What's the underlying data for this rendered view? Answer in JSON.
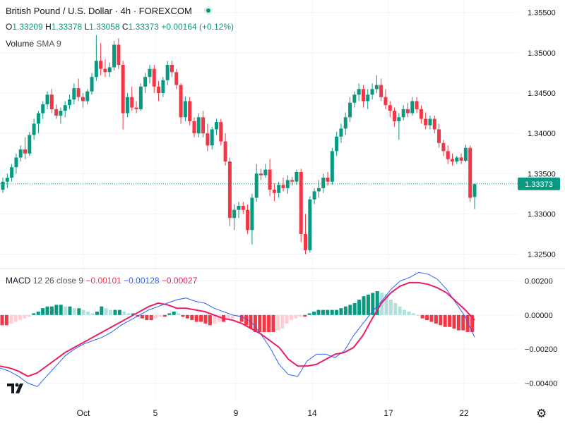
{
  "header": {
    "symbol": "British Pound / U.S. Dollar",
    "interval": "4h",
    "exchange": "FOREXCOM",
    "sep": "·",
    "status_color": "#089981"
  },
  "ohlc": {
    "o_label": "O",
    "o": "1.33209",
    "h_label": "H",
    "h": "1.33378",
    "l_label": "L",
    "l": "1.33058",
    "c_label": "C",
    "c": "1.33373",
    "change": "+0.00164 (+0.12%)"
  },
  "volume": {
    "label": "Volume",
    "ma": "SMA 9"
  },
  "macd_legend": {
    "label": "MACD",
    "params": "12 26 close 9",
    "hist": "−0.00101",
    "macd": "−0.00128",
    "signal": "−0.00027"
  },
  "colors": {
    "up": "#089981",
    "down": "#f23645",
    "up_light": "#b2dfdb",
    "down_light": "#ffcdd2",
    "macd_line": "#2962ff",
    "signal_line": "#e91e63",
    "grid": "#f0f3fa",
    "text": "#131722"
  },
  "icons": {
    "logo": "tradingview-logo-icon",
    "settings": "gear-icon"
  },
  "chart_data": [
    {
      "type": "candlestick",
      "symbol": "GBPUSD",
      "interval": "4h",
      "ylim": [
        1.324,
        1.3562
      ],
      "y_ticks": [
        "1.35500",
        "1.35000",
        "1.34500",
        "1.34000",
        "1.33500",
        "1.33000",
        "1.32500"
      ],
      "x_ticks": [
        "Oct",
        "5",
        "9",
        "14",
        "17",
        "22"
      ],
      "last_price": "1.33373",
      "last_price_value": 1.33373,
      "candles": [
        [
          1.333,
          1.3345,
          1.3326,
          1.334
        ],
        [
          1.334,
          1.335,
          1.3332,
          1.3345
        ],
        [
          1.3345,
          1.3362,
          1.334,
          1.3358
        ],
        [
          1.3358,
          1.3375,
          1.335,
          1.337
        ],
        [
          1.337,
          1.3385,
          1.3365,
          1.338
        ],
        [
          1.338,
          1.3395,
          1.3368,
          1.3375
        ],
        [
          1.3375,
          1.3402,
          1.3372,
          1.3398
        ],
        [
          1.3398,
          1.3418,
          1.3392,
          1.3412
        ],
        [
          1.3412,
          1.3428,
          1.34,
          1.3425
        ],
        [
          1.3425,
          1.344,
          1.3418,
          1.3436
        ],
        [
          1.3436,
          1.3452,
          1.343,
          1.3448
        ],
        [
          1.3448,
          1.3455,
          1.3425,
          1.343
        ],
        [
          1.343,
          1.3436,
          1.3418,
          1.3422
        ],
        [
          1.3422,
          1.3432,
          1.3412,
          1.3428
        ],
        [
          1.3428,
          1.344,
          1.342,
          1.3435
        ],
        [
          1.3435,
          1.3448,
          1.343,
          1.3442
        ],
        [
          1.3442,
          1.3462,
          1.3436,
          1.3456
        ],
        [
          1.3456,
          1.3468,
          1.344,
          1.3445
        ],
        [
          1.3445,
          1.345,
          1.3432,
          1.344
        ],
        [
          1.344,
          1.3455,
          1.3436,
          1.3452
        ],
        [
          1.3452,
          1.3475,
          1.3448,
          1.347
        ],
        [
          1.347,
          1.3522,
          1.3465,
          1.349
        ],
        [
          1.349,
          1.3512,
          1.3472,
          1.348
        ],
        [
          1.348,
          1.3492,
          1.347,
          1.3476
        ],
        [
          1.3476,
          1.3488,
          1.347,
          1.3482
        ],
        [
          1.3482,
          1.3515,
          1.3478,
          1.351
        ],
        [
          1.351,
          1.3518,
          1.348,
          1.3485
        ],
        [
          1.3485,
          1.349,
          1.3405,
          1.3425
        ],
        [
          1.3425,
          1.345,
          1.342,
          1.3445
        ],
        [
          1.3445,
          1.3458,
          1.3428,
          1.3432
        ],
        [
          1.3432,
          1.344,
          1.3425,
          1.343
        ],
        [
          1.343,
          1.3462,
          1.3428,
          1.3458
        ],
        [
          1.3458,
          1.3475,
          1.345,
          1.347
        ],
        [
          1.347,
          1.3485,
          1.3462,
          1.348
        ],
        [
          1.348,
          1.3485,
          1.345,
          1.3458
        ],
        [
          1.3458,
          1.3465,
          1.344,
          1.345
        ],
        [
          1.345,
          1.347,
          1.3445,
          1.3466
        ],
        [
          1.3466,
          1.349,
          1.346,
          1.3485
        ],
        [
          1.3485,
          1.349,
          1.347,
          1.3476
        ],
        [
          1.3476,
          1.348,
          1.3455,
          1.346
        ],
        [
          1.346,
          1.3462,
          1.3412,
          1.342
        ],
        [
          1.342,
          1.3446,
          1.3415,
          1.344
        ],
        [
          1.344,
          1.3445,
          1.341,
          1.3415
        ],
        [
          1.3415,
          1.342,
          1.3395,
          1.34
        ],
        [
          1.34,
          1.3425,
          1.3395,
          1.342
        ],
        [
          1.342,
          1.3428,
          1.3395,
          1.34
        ],
        [
          1.34,
          1.3412,
          1.3378,
          1.3385
        ],
        [
          1.3385,
          1.3408,
          1.338,
          1.3405
        ],
        [
          1.3405,
          1.3418,
          1.3398,
          1.3414
        ],
        [
          1.3414,
          1.3418,
          1.3385,
          1.339
        ],
        [
          1.339,
          1.34,
          1.336,
          1.3365
        ],
        [
          1.3365,
          1.337,
          1.3285,
          1.3295
        ],
        [
          1.3295,
          1.3312,
          1.328,
          1.3305
        ],
        [
          1.3305,
          1.3315,
          1.3295,
          1.331
        ],
        [
          1.331,
          1.3315,
          1.33,
          1.3305
        ],
        [
          1.3305,
          1.3312,
          1.3275,
          1.328
        ],
        [
          1.328,
          1.3325,
          1.3262,
          1.332
        ],
        [
          1.332,
          1.3362,
          1.3315,
          1.335
        ],
        [
          1.335,
          1.3356,
          1.3342,
          1.3348
        ],
        [
          1.3348,
          1.3362,
          1.3345,
          1.3355
        ],
        [
          1.3355,
          1.3368,
          1.3322,
          1.333
        ],
        [
          1.333,
          1.3338,
          1.3316,
          1.3326
        ],
        [
          1.3326,
          1.334,
          1.332,
          1.3336
        ],
        [
          1.3336,
          1.3345,
          1.3328,
          1.3332
        ],
        [
          1.3332,
          1.3348,
          1.3325,
          1.3342
        ],
        [
          1.3342,
          1.3346,
          1.3335,
          1.334
        ],
        [
          1.334,
          1.3355,
          1.3336,
          1.3352
        ],
        [
          1.3352,
          1.3356,
          1.3265,
          1.3275
        ],
        [
          1.3275,
          1.33,
          1.325,
          1.3255
        ],
        [
          1.3255,
          1.3322,
          1.3252,
          1.3318
        ],
        [
          1.3318,
          1.3332,
          1.3312,
          1.3328
        ],
        [
          1.3328,
          1.3342,
          1.332,
          1.3332
        ],
        [
          1.3332,
          1.335,
          1.3326,
          1.3345
        ],
        [
          1.3345,
          1.3352,
          1.3335,
          1.334
        ],
        [
          1.334,
          1.3382,
          1.3336,
          1.3378
        ],
        [
          1.3378,
          1.3402,
          1.3372,
          1.3396
        ],
        [
          1.3396,
          1.3412,
          1.3388,
          1.3406
        ],
        [
          1.3406,
          1.3426,
          1.3398,
          1.342
        ],
        [
          1.342,
          1.3445,
          1.3414,
          1.3438
        ],
        [
          1.3438,
          1.3452,
          1.3432,
          1.3448
        ],
        [
          1.3448,
          1.3462,
          1.344,
          1.3455
        ],
        [
          1.3455,
          1.346,
          1.3432,
          1.344
        ],
        [
          1.344,
          1.3455,
          1.343,
          1.3448
        ],
        [
          1.3448,
          1.3462,
          1.3442,
          1.3455
        ],
        [
          1.3455,
          1.3472,
          1.345,
          1.346
        ],
        [
          1.346,
          1.3468,
          1.344,
          1.3445
        ],
        [
          1.3445,
          1.3455,
          1.343,
          1.3435
        ],
        [
          1.3435,
          1.344,
          1.342,
          1.3428
        ],
        [
          1.3428,
          1.3432,
          1.3408,
          1.3415
        ],
        [
          1.3415,
          1.3425,
          1.3392,
          1.342
        ],
        [
          1.342,
          1.3435,
          1.3416,
          1.343
        ],
        [
          1.343,
          1.3438,
          1.342,
          1.3425
        ],
        [
          1.3425,
          1.3445,
          1.3422,
          1.344
        ],
        [
          1.344,
          1.3445,
          1.3425,
          1.343
        ],
        [
          1.343,
          1.3435,
          1.3412,
          1.3418
        ],
        [
          1.3418,
          1.3426,
          1.3405,
          1.341
        ],
        [
          1.341,
          1.3422,
          1.3405,
          1.3418
        ],
        [
          1.3418,
          1.3422,
          1.34,
          1.3405
        ],
        [
          1.3405,
          1.3412,
          1.3382,
          1.3388
        ],
        [
          1.3388,
          1.3392,
          1.3372,
          1.3378
        ],
        [
          1.3378,
          1.3385,
          1.3362,
          1.3368
        ],
        [
          1.3368,
          1.3375,
          1.336,
          1.3365
        ],
        [
          1.3365,
          1.3372,
          1.3362,
          1.337
        ],
        [
          1.337,
          1.3375,
          1.3362,
          1.3366
        ],
        [
          1.3366,
          1.3386,
          1.3364,
          1.3382
        ],
        [
          1.3382,
          1.3385,
          1.3315,
          1.332
        ],
        [
          1.3321,
          1.3338,
          1.3306,
          1.3337
        ]
      ]
    },
    {
      "type": "macd",
      "params": "12 26 close 9",
      "ylim": [
        -0.0046,
        0.0026
      ],
      "y_ticks": [
        "0.00200",
        "0.00000",
        "−0.00200",
        "−0.00400"
      ],
      "macd": [
        -0.0031,
        -0.0033,
        -0.0036,
        -0.004,
        -0.0042,
        -0.0036,
        -0.003,
        -0.0024,
        -0.002,
        -0.0017,
        -0.0015,
        -0.0013,
        -0.001,
        -0.0006,
        -0.0003,
        0.0,
        0.0003,
        0.0005,
        0.0007,
        0.0009,
        0.001,
        0.0008,
        0.0007,
        0.0004,
        0.0002,
        0.0,
        -0.0001,
        -0.0004,
        -0.0011,
        -0.0019,
        -0.0029,
        -0.0035,
        -0.0036,
        -0.0027,
        -0.0023,
        -0.0023,
        -0.0025,
        -0.0021,
        -0.0012,
        -0.0005,
        0.0002,
        0.0008,
        0.0015,
        0.002,
        0.0022,
        0.0025,
        0.0024,
        0.0021,
        0.0015,
        0.0007,
        -0.0001,
        -0.0013
      ],
      "signal": [
        -0.003,
        -0.0031,
        -0.0033,
        -0.0036,
        -0.0034,
        -0.003,
        -0.0026,
        -0.0022,
        -0.0019,
        -0.0016,
        -0.0013,
        -0.001,
        -0.0007,
        -0.0004,
        -0.0001,
        0.0002,
        0.0005,
        0.0007,
        0.0006,
        0.0004,
        0.0004,
        0.0003,
        0.0002,
        0.0,
        -0.0002,
        -0.0003,
        -0.0005,
        -0.0008,
        -0.0011,
        -0.0015,
        -0.0019,
        -0.0026,
        -0.003,
        -0.003,
        -0.0029,
        -0.0026,
        -0.0023,
        -0.0022,
        -0.0019,
        -0.0012,
        -0.0002,
        0.0007,
        0.0013,
        0.0017,
        0.0019,
        0.0019,
        0.0018,
        0.0016,
        0.0013,
        0.0008,
        0.0003,
        -0.0003
      ],
      "histogram": [
        -0.0006,
        -0.0006,
        -0.0005,
        -0.0004,
        -0.0003,
        -0.0002,
        -0.0001,
        0.0001,
        0.0002,
        0.0004,
        0.0005,
        0.0005,
        0.0006,
        0.0006,
        0.0005,
        0.0005,
        0.0004,
        0.0004,
        0.0003,
        0.0002,
        0.0001,
        0.0002,
        0.0005,
        0.0004,
        0.0003,
        0.0003,
        0.0003,
        0.0002,
        0.0001,
        0.0001,
        -0.0001,
        -0.0002,
        -0.0003,
        -0.0003,
        -0.0002,
        -0.0001,
        -0.0001,
        0.0001,
        0.0002,
        0.0001,
        -0.0001,
        -0.0002,
        -0.0003,
        -0.0004,
        -0.0004,
        -0.0005,
        -0.0006,
        -0.0005,
        -0.0004,
        -0.0004,
        -0.0003,
        -0.0002,
        -0.0001,
        -0.0004,
        -0.0006,
        -0.0008,
        -0.001,
        -0.001,
        -0.001,
        -0.001,
        -0.001,
        -0.0009,
        -0.0008,
        -0.0005,
        -0.0003,
        -0.0002,
        -0.0001,
        -0.0001,
        0.0001,
        0.0002,
        0.0003,
        0.0003,
        0.0003,
        0.0003,
        0.0003,
        0.0004,
        0.0005,
        0.0006,
        0.0007,
        0.0009,
        0.0011,
        0.0012,
        0.0013,
        0.0014,
        0.0013,
        0.0012,
        0.0009,
        0.0007,
        0.0005,
        0.0003,
        0.0002,
        0.0001,
        0.0,
        -0.0002,
        -0.0003,
        -0.0004,
        -0.0005,
        -0.0006,
        -0.0007,
        -0.0007,
        -0.0008,
        -0.0009,
        -0.0009,
        -0.001,
        -0.001
      ]
    }
  ]
}
